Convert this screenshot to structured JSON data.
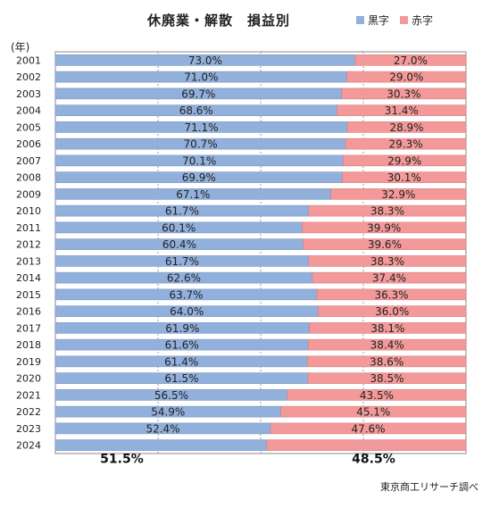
{
  "chart_data": {
    "type": "bar",
    "orientation": "horizontal",
    "stacked": true,
    "percent": true,
    "title": "休廃業・解散　損益別",
    "unit_label": "(年)",
    "source": "東京商工リサーチ調べ",
    "categories": [
      "2001",
      "2002",
      "2003",
      "2004",
      "2005",
      "2006",
      "2007",
      "2008",
      "2009",
      "2010",
      "2011",
      "2012",
      "2013",
      "2014",
      "2015",
      "2016",
      "2017",
      "2018",
      "2019",
      "2020",
      "2021",
      "2022",
      "2023",
      "2024"
    ],
    "series": [
      {
        "name": "黒字",
        "color": "#92b0dc",
        "values": [
          73.0,
          71.0,
          69.7,
          68.6,
          71.1,
          70.7,
          70.1,
          69.9,
          67.1,
          61.7,
          60.1,
          60.4,
          61.7,
          62.6,
          63.7,
          64.0,
          61.9,
          61.6,
          61.4,
          61.5,
          56.5,
          54.9,
          52.4,
          51.5
        ],
        "labels": [
          "73.0%",
          "71.0%",
          "69.7%",
          "68.6%",
          "71.1%",
          "70.7%",
          "70.1%",
          "69.9%",
          "67.1%",
          "61.7%",
          "60.1%",
          "60.4%",
          "61.7%",
          "62.6%",
          "63.7%",
          "64.0%",
          "61.9%",
          "61.6%",
          "61.4%",
          "61.5%",
          "56.5%",
          "54.9%",
          "52.4%",
          "51.5%"
        ]
      },
      {
        "name": "赤字",
        "color": "#f4999a",
        "values": [
          27.0,
          29.0,
          30.3,
          31.4,
          28.9,
          29.3,
          29.9,
          30.1,
          32.9,
          38.3,
          39.9,
          39.6,
          38.3,
          37.4,
          36.3,
          36.0,
          38.1,
          38.4,
          38.6,
          38.5,
          43.5,
          45.1,
          47.6,
          48.5
        ],
        "labels": [
          "27.0%",
          "29.0%",
          "30.3%",
          "31.4%",
          "28.9%",
          "29.3%",
          "29.9%",
          "30.1%",
          "32.9%",
          "38.3%",
          "39.9%",
          "39.6%",
          "38.3%",
          "37.4%",
          "36.3%",
          "36.0%",
          "38.1%",
          "38.4%",
          "38.6%",
          "38.5%",
          "43.5%",
          "45.1%",
          "47.6%",
          "48.5%"
        ]
      }
    ],
    "xlim": [
      0,
      100
    ],
    "grid": true,
    "legend_position": "top-right",
    "highlight_last_row_labels_below": true
  }
}
